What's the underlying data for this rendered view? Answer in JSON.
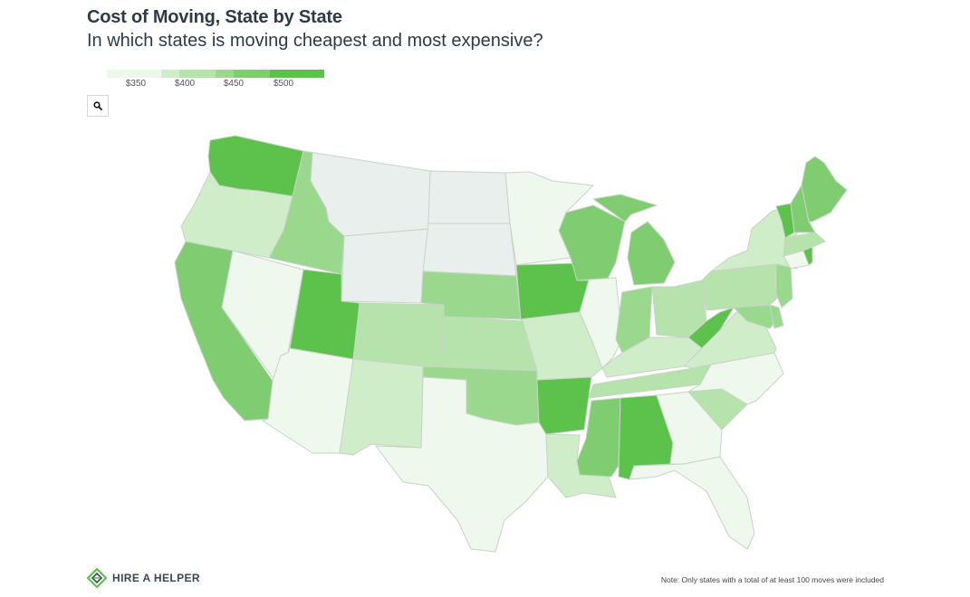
{
  "title": "Cost of Moving, State by State",
  "subtitle": "In which states is moving cheapest and most expensive?",
  "legend": {
    "labels": [
      "$350",
      "$400",
      "$450",
      "$500"
    ],
    "colors": [
      "#eef8ec",
      "#cfedc8",
      "#b5e3ab",
      "#9ad88e",
      "#80cd71",
      "#5cc24b"
    ]
  },
  "search": {
    "icon": "magnifier-icon"
  },
  "brand": {
    "name": "HIRE A HELPER",
    "icon": "hireahelper-logo-icon"
  },
  "note": "Note: Only states with a total of at least 100 moves were included",
  "map_data": {
    "no_data_color": "#e8efec",
    "states": [
      {
        "id": "WA",
        "level": 5
      },
      {
        "id": "OR",
        "level": 1
      },
      {
        "id": "CA",
        "level": 4
      },
      {
        "id": "NV",
        "level": 0
      },
      {
        "id": "ID",
        "level": 3
      },
      {
        "id": "MT",
        "level": -1
      },
      {
        "id": "WY",
        "level": -1
      },
      {
        "id": "UT",
        "level": 5
      },
      {
        "id": "AZ",
        "level": 0
      },
      {
        "id": "CO",
        "level": 2
      },
      {
        "id": "NM",
        "level": 1
      },
      {
        "id": "ND",
        "level": -1
      },
      {
        "id": "SD",
        "level": -1
      },
      {
        "id": "NE",
        "level": 3
      },
      {
        "id": "KS",
        "level": 2
      },
      {
        "id": "OK",
        "level": 3
      },
      {
        "id": "TX",
        "level": 0
      },
      {
        "id": "MN",
        "level": 0
      },
      {
        "id": "IA",
        "level": 5
      },
      {
        "id": "MO",
        "level": 1
      },
      {
        "id": "AR",
        "level": 5
      },
      {
        "id": "LA",
        "level": 1
      },
      {
        "id": "WI",
        "level": 4
      },
      {
        "id": "IL",
        "level": 0
      },
      {
        "id": "MI",
        "level": 4
      },
      {
        "id": "IN",
        "level": 3
      },
      {
        "id": "OH",
        "level": 2
      },
      {
        "id": "KY",
        "level": 1
      },
      {
        "id": "TN",
        "level": 2
      },
      {
        "id": "MS",
        "level": 4
      },
      {
        "id": "AL",
        "level": 5
      },
      {
        "id": "GA",
        "level": 0
      },
      {
        "id": "FL",
        "level": 0
      },
      {
        "id": "SC",
        "level": 2
      },
      {
        "id": "NC",
        "level": 0
      },
      {
        "id": "VA",
        "level": 1
      },
      {
        "id": "WV",
        "level": 5
      },
      {
        "id": "PA",
        "level": 2
      },
      {
        "id": "NY",
        "level": 1
      },
      {
        "id": "MD",
        "level": 3
      },
      {
        "id": "DE",
        "level": 3
      },
      {
        "id": "NJ",
        "level": 3
      },
      {
        "id": "CT",
        "level": 0
      },
      {
        "id": "RI",
        "level": 5
      },
      {
        "id": "MA",
        "level": 2
      },
      {
        "id": "VT",
        "level": 5
      },
      {
        "id": "NH",
        "level": 4
      },
      {
        "id": "ME",
        "level": 4
      }
    ]
  }
}
